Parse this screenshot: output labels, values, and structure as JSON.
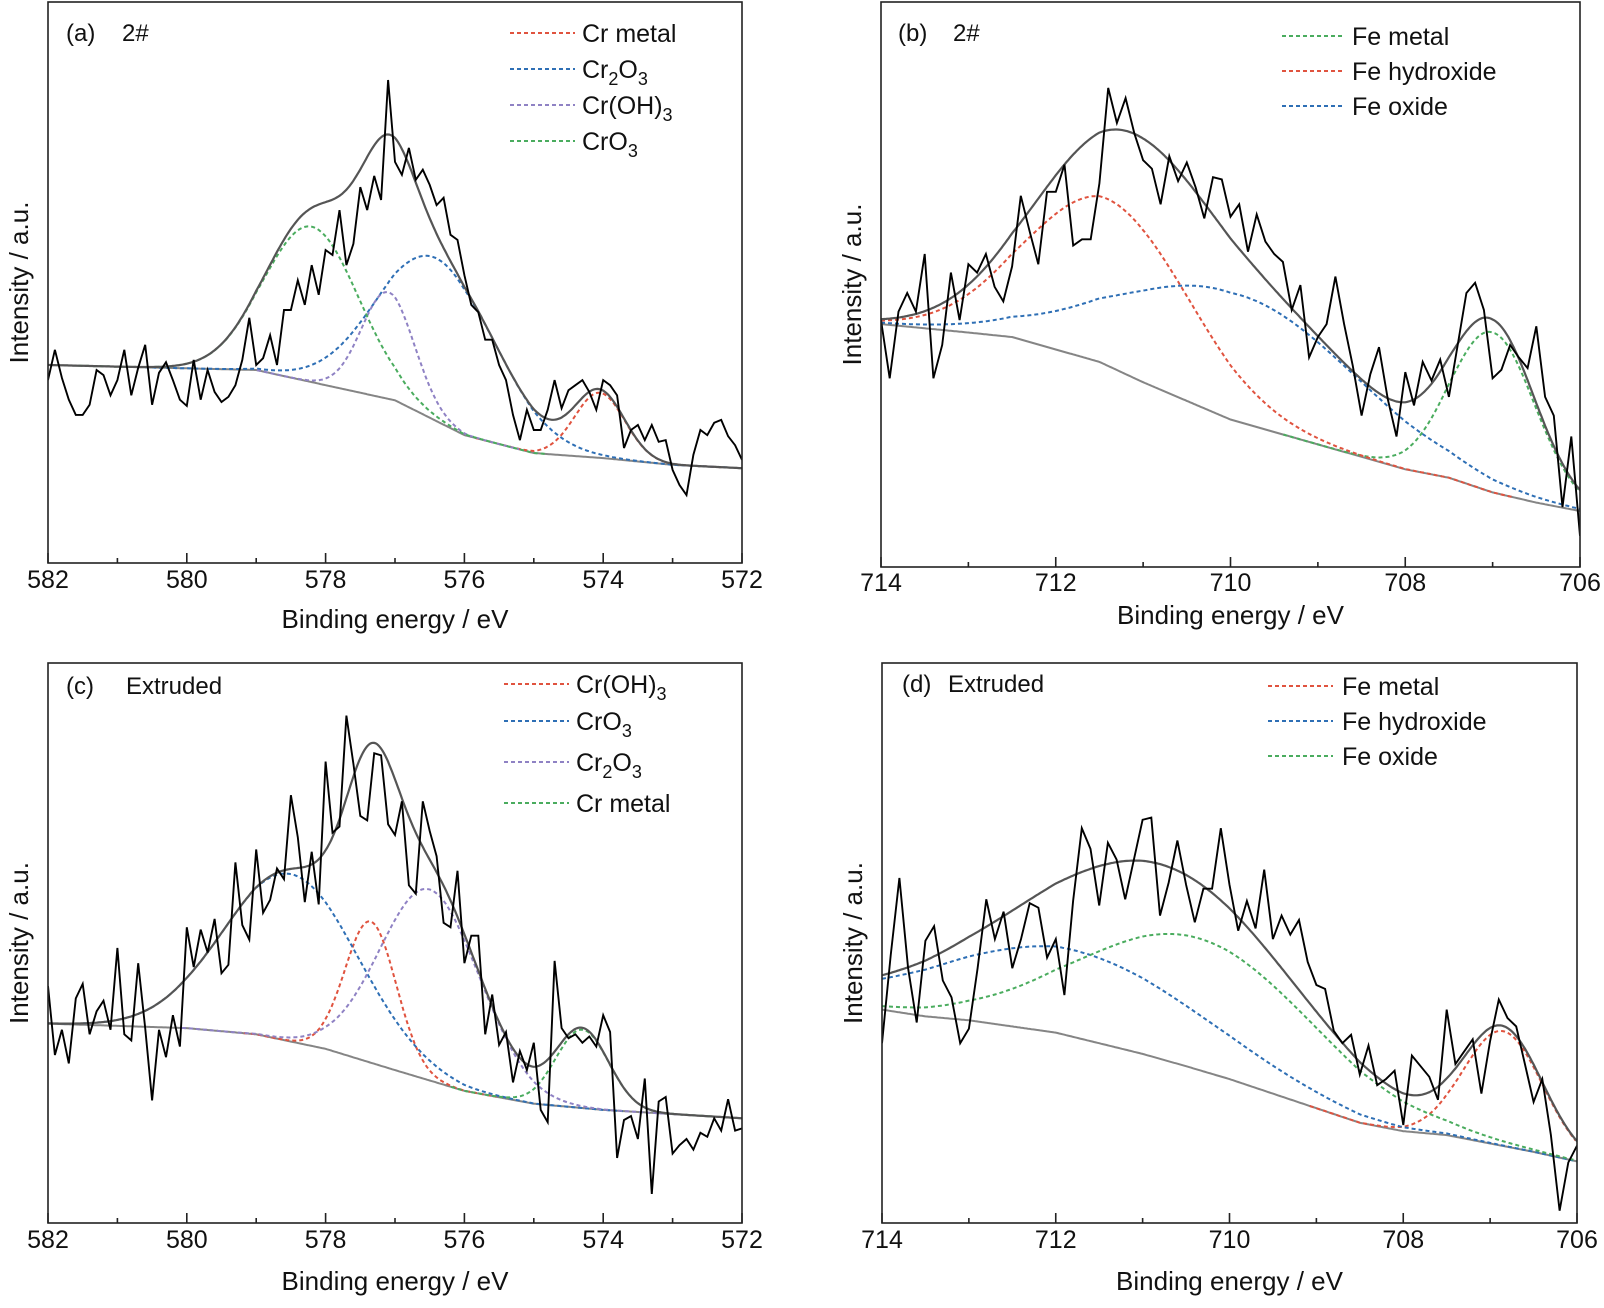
{
  "chart_data": [
    {
      "id": "a",
      "type": "line",
      "title": "",
      "panel_label": "(a)",
      "sample_label": "2#",
      "xlabel": "Binding energy / eV",
      "ylabel": "Intensity / a.u.",
      "xlim": [
        582,
        572
      ],
      "ylim": [
        0,
        100
      ],
      "x_major_ticks": [
        582,
        580,
        578,
        576,
        574,
        572
      ],
      "x_tick_labels": [
        "582",
        "580",
        "578",
        "576",
        "574",
        "572"
      ],
      "x_minor_ticks": [
        581,
        579,
        577,
        575,
        573
      ],
      "y_ticks_shown": false,
      "grid": false,
      "legend_position": "top-right",
      "raw_spectrum": {
        "x_start": 582.0,
        "x_step": -0.1,
        "y": [
          32.6,
          38.0,
          33.0,
          29.1,
          26.4,
          26.4,
          28.2,
          34.4,
          33.5,
          29.9,
          32.6,
          38.0,
          29.9,
          34.8,
          38.9,
          28.2,
          33.9,
          35.8,
          32.6,
          29.1,
          28.0,
          36.2,
          29.1,
          34.4,
          30.5,
          28.7,
          29.6,
          31.7,
          36.2,
          43.7,
          35.3,
          36.5,
          40.6,
          35.3,
          45.1,
          45.1,
          50.4,
          46.0,
          53.1,
          47.8,
          55.8,
          54.9,
          62.9,
          53.1,
          56.9,
          67.0,
          62.9,
          69.0,
          64.7,
          86.1,
          71.5,
          69.2,
          74.0,
          68.3,
          70.1,
          67.4,
          63.8,
          65.1,
          58.5,
          57.6,
          51.3,
          46.0,
          44.7,
          39.8,
          39.8,
          35.3,
          32.6,
          26.4,
          21.9,
          27.3,
          23.7,
          23.7,
          27.3,
          32.6,
          27.6,
          30.8,
          31.7,
          32.6,
          30.5,
          27.3,
          32.6,
          31.7,
          29.9,
          20.5,
          23.7,
          24.6,
          21.9,
          24.6,
          21.6,
          21.9,
          16.6,
          13.9,
          12.1,
          19.3,
          23.7,
          22.8,
          25.0,
          25.5,
          22.6,
          21.0,
          18.4
        ]
      },
      "background": {
        "x": [
          582,
          579,
          578,
          577,
          576,
          575,
          574,
          573,
          572
        ],
        "y": [
          35.3,
          34.4,
          31.7,
          29.0,
          22.8,
          19.6,
          18.7,
          17.5,
          16.9
        ]
      },
      "components": [
        {
          "name": "Cr metal",
          "label": "Cr metal",
          "color": "#e0533f",
          "center": 574.05,
          "amplitude": 11.6,
          "fwhm": 0.85
        },
        {
          "name": "Cr2O3",
          "label": "Cr2O3",
          "color": "#2e6fb5",
          "center": 576.4,
          "amplitude": 29.0,
          "fwhm": 2.0
        },
        {
          "name": "Cr(OH)3",
          "label": "Cr(OH)3",
          "color": "#8f82c4",
          "center": 577.1,
          "amplitude": 19.0,
          "fwhm": 0.9
        },
        {
          "name": "CrO3",
          "label": "CrO3",
          "color": "#4aac5e",
          "center": 578.2,
          "amplitude": 27.7,
          "fwhm": 1.6
        }
      ]
    },
    {
      "id": "b",
      "type": "line",
      "title": "",
      "panel_label": "(b)",
      "sample_label": "2#",
      "xlabel": "Binding energy / eV",
      "ylabel": "Intensity / a.u.",
      "xlim": [
        714,
        706
      ],
      "ylim": [
        0,
        100
      ],
      "x_major_ticks": [
        714,
        712,
        710,
        708,
        706
      ],
      "x_tick_labels": [
        "714",
        "712",
        "710",
        "708",
        "706"
      ],
      "x_minor_ticks": [
        713,
        711,
        709,
        707
      ],
      "y_ticks_shown": false,
      "grid": false,
      "legend_position": "top-right",
      "raw_spectrum": {
        "x_start": 714.0,
        "x_step": -0.1,
        "y": [
          43.7,
          33.4,
          45.2,
          48.5,
          45.2,
          55.4,
          33.4,
          39.3,
          52.1,
          43.7,
          53.6,
          52.1,
          55.4,
          49.6,
          47.0,
          53.2,
          65.7,
          59.5,
          53.6,
          66.4,
          66.4,
          71.2,
          56.9,
          58.0,
          58.0,
          67.9,
          84.8,
          78.6,
          83.0,
          76.7,
          72.0,
          70.5,
          64.2,
          72.7,
          68.3,
          71.6,
          67.2,
          61.7,
          69.0,
          68.6,
          62.0,
          64.2,
          55.8,
          62.4,
          57.6,
          55.4,
          54.0,
          45.5,
          49.9,
          37.1,
          40.7,
          43.0,
          51.4,
          43.0,
          35.6,
          26.8,
          34.1,
          38.9,
          29.7,
          23.1,
          34.5,
          28.6,
          36.3,
          33.0,
          36.7,
          30.1,
          39.3,
          48.5,
          50.3,
          45.5,
          33.4,
          34.9,
          39.3,
          37.1,
          35.2,
          42.6,
          30.1,
          26.8,
          10.6,
          23.1,
          5.5
        ]
      },
      "background": {
        "x": [
          714,
          713,
          712.5,
          712,
          711.5,
          711,
          710,
          709,
          708.5,
          708,
          707.5,
          707,
          706.5,
          706
        ],
        "y": [
          43.0,
          41.5,
          40.7,
          38.5,
          36.3,
          32.7,
          26.1,
          21.7,
          19.5,
          17.3,
          15.8,
          13.2,
          11.4,
          9.9
        ]
      },
      "components": [
        {
          "name": "Fe metal",
          "label": "Fe metal",
          "color": "#4aac5e",
          "center": 707.0,
          "amplitude": 28.3,
          "fwhm": 1.14
        },
        {
          "name": "Fe hydroxide",
          "label": "Fe hydroxide",
          "color": "#e0533f",
          "center": 711.4,
          "amplitude": 29.5,
          "fwhm": 2.2
        },
        {
          "name": "Fe oxide",
          "label": "Fe oxide",
          "color": "#2e6fb5",
          "center": 709.9,
          "amplitude": 22.5,
          "fwhm": 3.2
        }
      ]
    },
    {
      "id": "c",
      "type": "line",
      "title": "",
      "panel_label": "(c)",
      "sample_label": "Extruded",
      "xlabel": "Binding energy / eV",
      "ylabel": "Intensity / a.u.",
      "xlim": [
        582,
        572
      ],
      "ylim": [
        0,
        100
      ],
      "x_major_ticks": [
        582,
        580,
        578,
        576,
        574,
        572
      ],
      "x_tick_labels": [
        "582",
        "580",
        "578",
        "576",
        "574",
        "572"
      ],
      "x_minor_ticks": [
        581,
        579,
        577,
        575,
        573
      ],
      "y_ticks_shown": false,
      "grid": false,
      "legend_position": "top-right",
      "raw_spectrum": {
        "x_start": 582.0,
        "x_step": -0.1,
        "y": [
          42.3,
          30.0,
          34.5,
          28.5,
          40.1,
          42.7,
          33.7,
          37.8,
          39.7,
          34.5,
          49.1,
          33.7,
          32.6,
          46.4,
          34.8,
          21.9,
          34.5,
          29.6,
          37.1,
          31.5,
          52.8,
          45.7,
          52.4,
          48.3,
          54.3,
          44.6,
          46.1,
          64.4,
          53.2,
          50.6,
          66.7,
          55.4,
          57.7,
          63.3,
          61.4,
          76.4,
          68.9,
          57.3,
          66.3,
          56.9,
          82.4,
          69.7,
          70.8,
          90.6,
          82.0,
          72.7,
          71.9,
          83.9,
          83.5,
          71.2,
          69.3,
          75.3,
          60.3,
          58.8,
          75.3,
          70.0,
          65.5,
          53.6,
          52.8,
          62.9,
          46.4,
          51.3,
          51.3,
          33.7,
          40.8,
          31.8,
          34.1,
          25.1,
          30.7,
          27.3,
          32.2,
          20.2,
          18.0,
          46.8,
          34.8,
          33.0,
          33.7,
          32.2,
          33.3,
          31.5,
          37.1,
          34.1,
          11.6,
          18.4,
          19.1,
          15.0,
          25.8,
          5.2,
          21.7,
          22.5,
          12.4,
          13.9,
          15.0,
          13.1,
          16.1,
          15.4,
          18.7,
          16.5,
          22.1,
          16.5,
          16.9
        ]
      },
      "background": {
        "x": [
          582,
          580,
          579,
          578,
          577,
          576,
          575,
          574,
          572
        ],
        "y": [
          35.6,
          34.8,
          33.7,
          31.1,
          27.3,
          23.6,
          21.3,
          20.2,
          18.7
        ]
      },
      "components": [
        {
          "name": "Cr(OH)3",
          "label": "Cr(OH)3",
          "color": "#e0533f",
          "center": 577.35,
          "amplitude": 25.2,
          "fwhm": 0.87
        },
        {
          "name": "CrO3",
          "label": "CrO3",
          "color": "#2e6fb5",
          "center": 578.5,
          "amplitude": 29.9,
          "fwhm": 2.28
        },
        {
          "name": "Cr2O3",
          "label": "Cr2O3",
          "color": "#8f82c4",
          "center": 576.5,
          "amplitude": 34.1,
          "fwhm": 1.7
        },
        {
          "name": "Cr metal",
          "label": "Cr metal",
          "color": "#4aac5e",
          "center": 574.3,
          "amplitude": 14.0,
          "fwhm": 0.9
        }
      ]
    },
    {
      "id": "d",
      "type": "line",
      "title": "",
      "panel_label": "(d)",
      "sample_label": "Extruded",
      "xlabel": "Binding energy / eV",
      "ylabel": "Intensity / a.u.",
      "xlim": [
        714,
        706
      ],
      "ylim": [
        0,
        100
      ],
      "x_major_ticks": [
        714,
        712,
        710,
        708,
        706
      ],
      "x_tick_labels": [
        "714",
        "712",
        "710",
        "708",
        "706"
      ],
      "x_minor_ticks": [
        713,
        711,
        709,
        707
      ],
      "y_ticks_shown": false,
      "grid": false,
      "legend_position": "top-right",
      "raw_spectrum": {
        "x_start": 714.0,
        "x_step": -0.1,
        "y": [
          32.1,
          47.8,
          61.6,
          45.5,
          35.8,
          50.4,
          53.0,
          43.3,
          40.3,
          32.1,
          34.7,
          45.5,
          57.8,
          50.7,
          55.6,
          45.5,
          50.7,
          57.1,
          56.3,
          47.4,
          50.7,
          40.7,
          57.5,
          70.5,
          66.8,
          56.7,
          67.9,
          64.9,
          57.8,
          64.9,
          72.0,
          72.4,
          54.9,
          60.8,
          68.3,
          60.4,
          53.7,
          59.7,
          59.7,
          70.5,
          60.4,
          52.2,
          57.5,
          52.6,
          63.1,
          50.7,
          54.9,
          51.5,
          54.1,
          46.6,
          42.5,
          41.8,
          34.3,
          32.1,
          33.6,
          26.5,
          31.7,
          24.6,
          25.7,
          27.2,
          17.5,
          29.9,
          28.0,
          26.1,
          22.0,
          38.1,
          28.4,
          30.6,
          32.8,
          23.1,
          32.5,
          39.9,
          36.6,
          35.1,
          28.4,
          21.6,
          25.7,
          15.7,
          2.2,
          10.8,
          13.8
        ]
      },
      "background": {
        "x": [
          714,
          713.5,
          713,
          712.5,
          712,
          711.5,
          711,
          710.5,
          710,
          709.5,
          709,
          708.5,
          708,
          707.5,
          707,
          706.5,
          706
        ],
        "y": [
          38.1,
          36.9,
          36.2,
          35.1,
          34.0,
          32.1,
          30.2,
          28.0,
          25.7,
          23.1,
          20.5,
          17.9,
          16.4,
          15.7,
          14.2,
          12.7,
          11.0
        ]
      },
      "components": [
        {
          "name": "Fe metal",
          "label": "Fe metal",
          "color": "#e0533f",
          "center": 706.85,
          "amplitude": 20.5,
          "fwhm": 1.06
        },
        {
          "name": "Fe hydroxide",
          "label": "Fe hydroxide",
          "color": "#2e6fb5",
          "center": 711.8,
          "amplitude": 15.5,
          "fwhm": 3.6
        },
        {
          "name": "Fe oxide",
          "label": "Fe oxide",
          "color": "#4aac5e",
          "center": 710.35,
          "amplitude": 23.5,
          "fwhm": 3.2
        }
      ]
    }
  ],
  "series_styles": {
    "raw_color": "#000000",
    "envelope_color": "#555555",
    "background_color": "#858585"
  }
}
